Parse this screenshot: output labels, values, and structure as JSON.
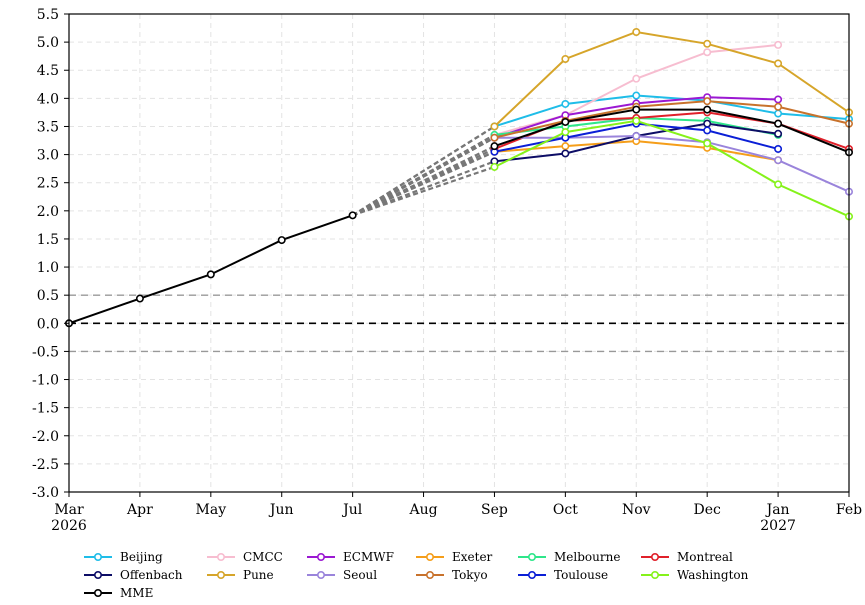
{
  "chart_data": {
    "type": "line",
    "x_labels": [
      "Mar\n2026",
      "Apr",
      "May",
      "Jun",
      "Jul",
      "Aug",
      "Sep",
      "Oct",
      "Nov",
      "Dec",
      "Jan\n2027",
      "Feb"
    ],
    "ylim": [
      -3.0,
      5.5
    ],
    "yticks": [
      "-3.0",
      "-2.5",
      "-2.0",
      "-1.5",
      "-1.0",
      "-0.5",
      "0.0",
      "0.5",
      "1.0",
      "1.5",
      "2.0",
      "2.5",
      "3.0",
      "3.5",
      "4.0",
      "4.5",
      "5.0",
      "5.5"
    ],
    "grid": true,
    "reference_lines": [
      {
        "y": 0.5,
        "style": "dashed",
        "color": "#999999"
      },
      {
        "y": 0.0,
        "style": "dashed",
        "color": "#000000"
      },
      {
        "y": -0.5,
        "style": "dashed",
        "color": "#999999"
      }
    ],
    "observed": {
      "name": "MME",
      "color": "#000000",
      "months": [
        0,
        1,
        2,
        3,
        4
      ],
      "values": [
        0.0,
        0.44,
        0.87,
        1.48,
        1.92
      ]
    },
    "forecast_start_month": 6,
    "series": [
      {
        "name": "Beijing",
        "color": "#1FBDE8",
        "values": [
          3.5,
          3.9,
          4.05,
          3.96,
          3.73,
          3.63
        ]
      },
      {
        "name": "CMCC",
        "color": "#F7BDD0",
        "values": [
          3.35,
          3.7,
          4.35,
          4.82,
          4.95,
          null
        ]
      },
      {
        "name": "ECMWF",
        "color": "#9B18D2",
        "values": [
          3.3,
          3.7,
          3.91,
          4.02,
          3.98,
          null
        ]
      },
      {
        "name": "Exeter",
        "color": "#F59E1A",
        "values": [
          3.05,
          3.15,
          3.24,
          3.12,
          2.9,
          null
        ]
      },
      {
        "name": "Melbourne",
        "color": "#2EE68A",
        "values": [
          3.35,
          3.5,
          3.65,
          3.6,
          3.35,
          null
        ]
      },
      {
        "name": "Montreal",
        "color": "#E0202A",
        "values": [
          3.1,
          3.6,
          3.65,
          3.75,
          3.55,
          3.1
        ]
      },
      {
        "name": "Offenbach",
        "color": "#0D0D66",
        "values": [
          2.88,
          3.02,
          3.33,
          3.55,
          3.37,
          null
        ]
      },
      {
        "name": "Pune",
        "color": "#D6A52A",
        "values": [
          3.5,
          4.7,
          5.18,
          4.97,
          4.62,
          3.75
        ]
      },
      {
        "name": "Seoul",
        "color": "#9A84DB",
        "values": [
          3.3,
          3.3,
          3.33,
          3.22,
          2.9,
          2.34
        ]
      },
      {
        "name": "Tokyo",
        "color": "#C8722C",
        "values": [
          3.3,
          3.6,
          3.85,
          3.95,
          3.85,
          3.55
        ]
      },
      {
        "name": "Toulouse",
        "color": "#0B1FD6",
        "values": [
          3.05,
          3.3,
          3.55,
          3.43,
          3.1,
          null
        ]
      },
      {
        "name": "Washington",
        "color": "#85F21A",
        "values": [
          2.78,
          3.4,
          3.6,
          3.2,
          2.47,
          1.9
        ]
      },
      {
        "name": "MME",
        "color": "#000000",
        "values": [
          3.15,
          3.58,
          3.8,
          3.8,
          3.55,
          3.04
        ]
      }
    ],
    "legend": {
      "placement": "bottom",
      "columns": 6
    }
  }
}
